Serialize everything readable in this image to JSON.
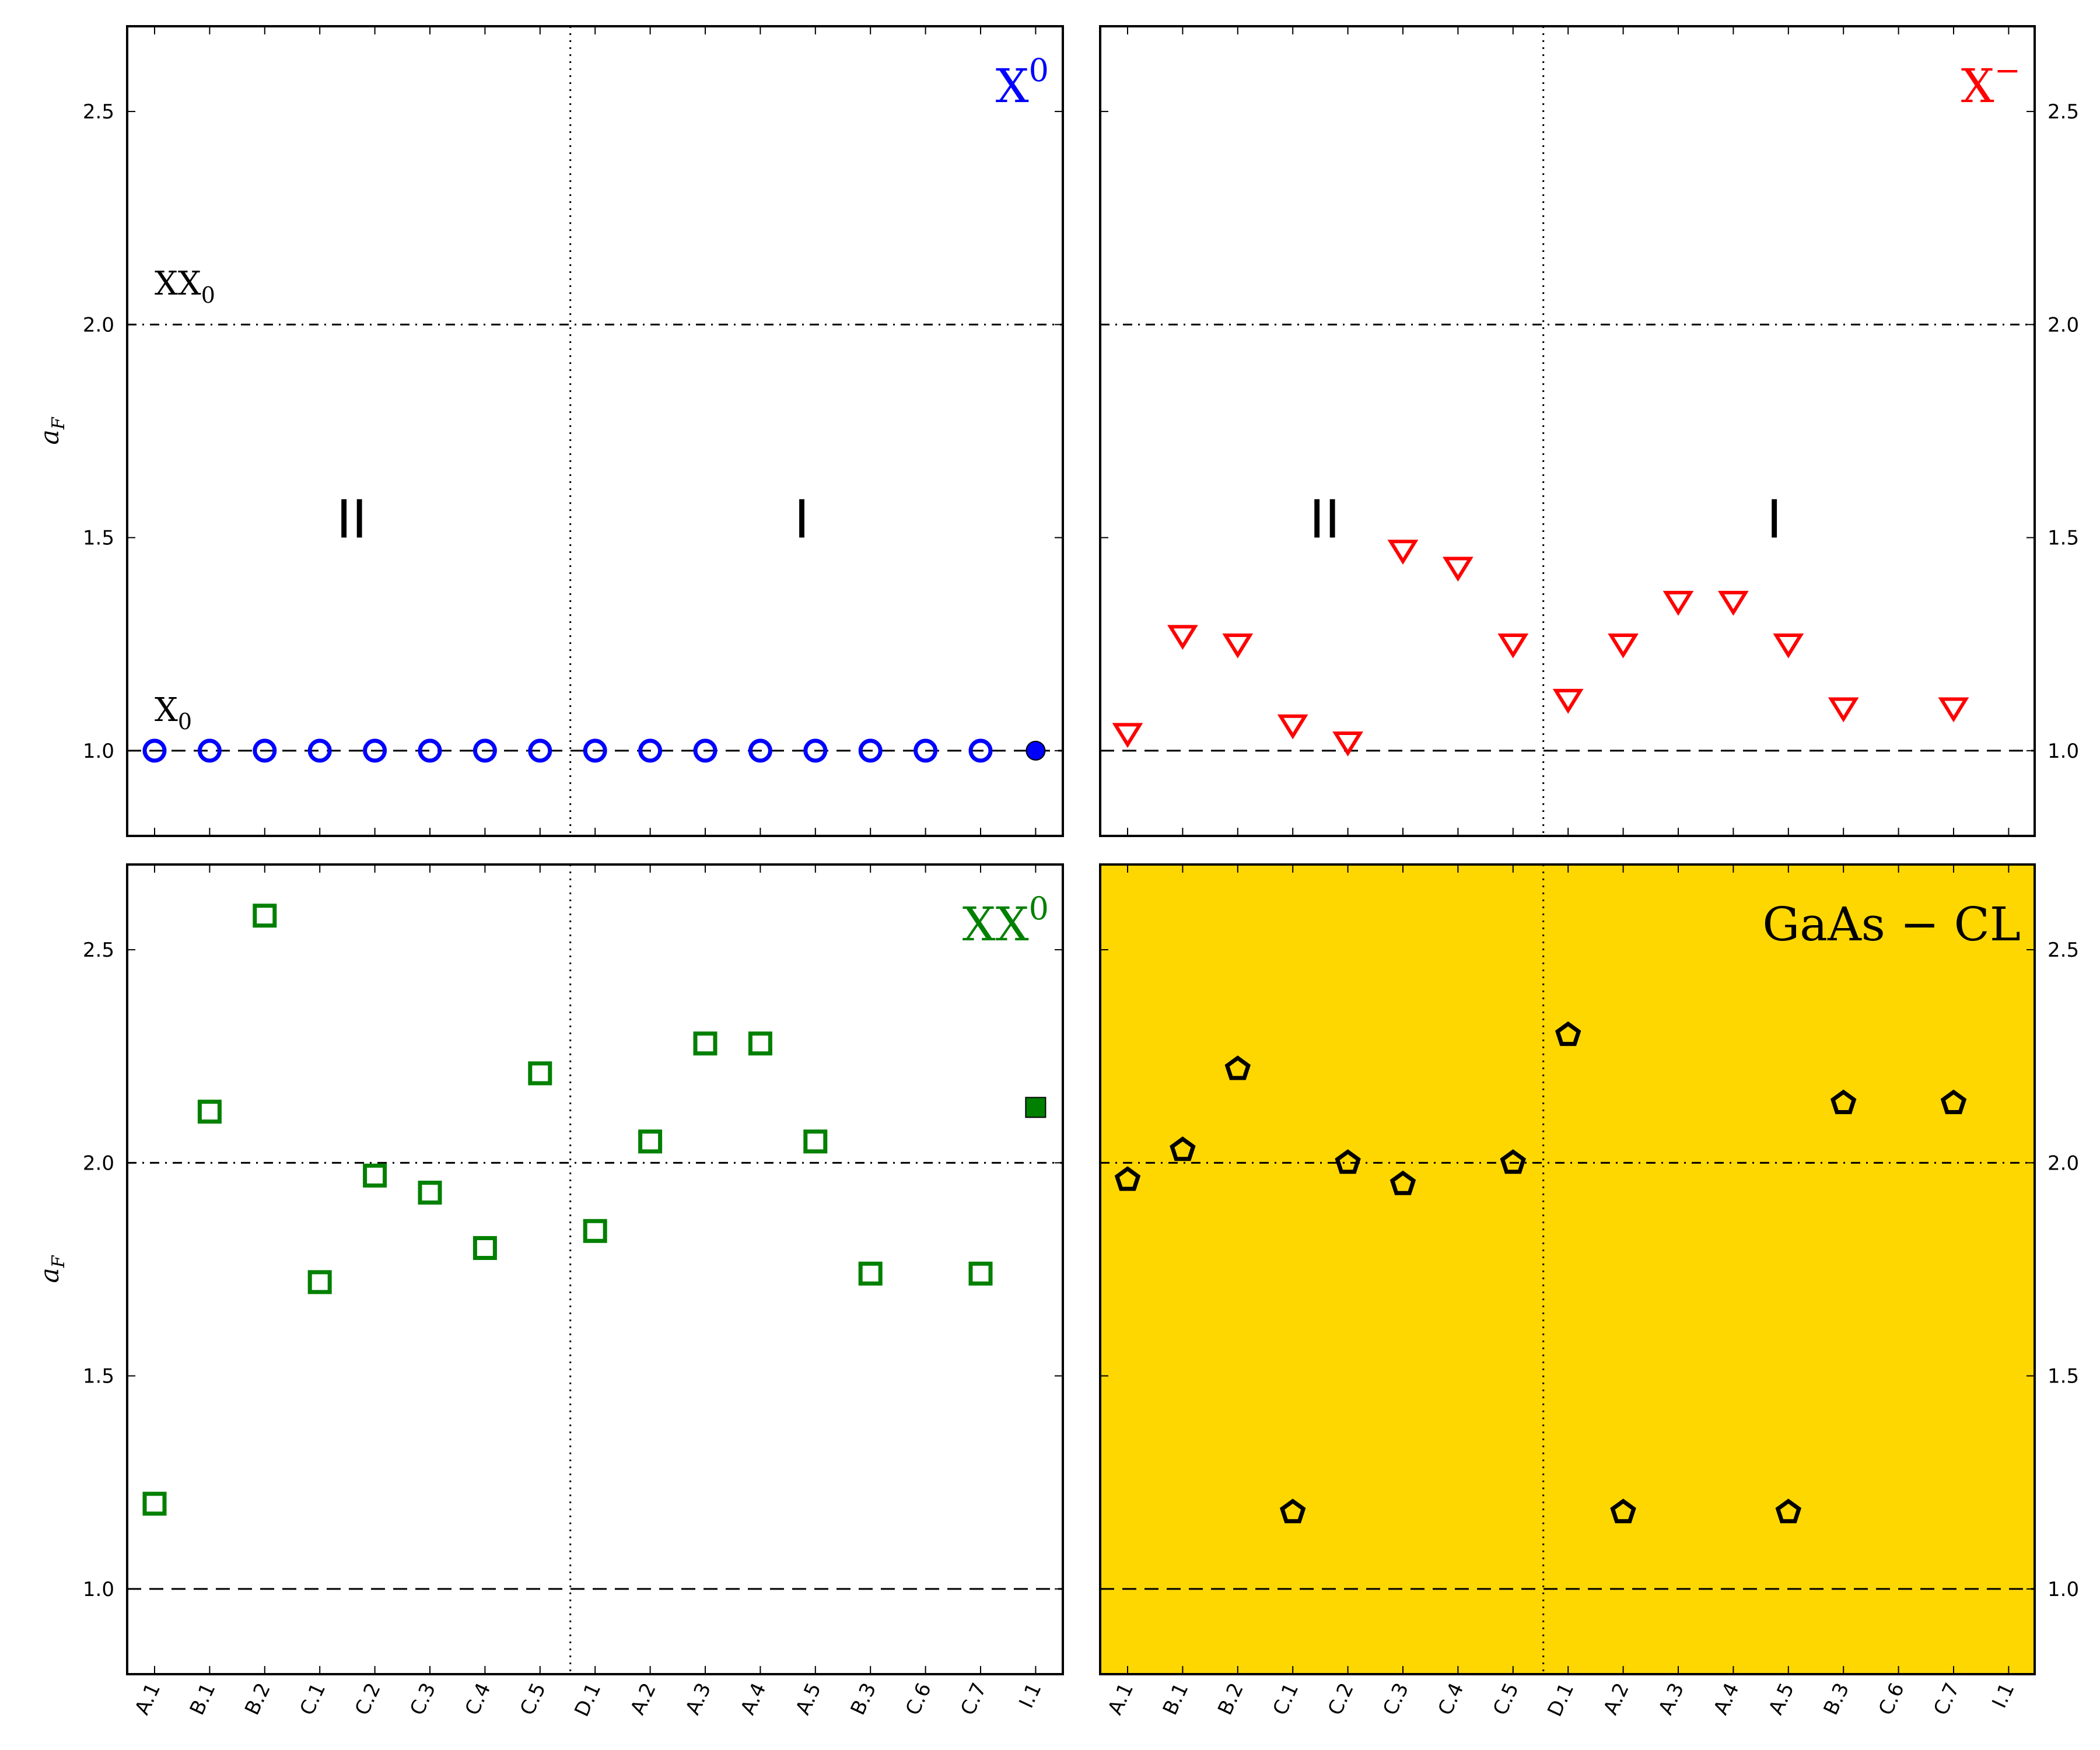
{
  "chart_data": [
    {
      "type": "scatter",
      "panel_label": "X",
      "panel_label_sup": "0",
      "panel_label_color": "#0000ff",
      "ylabel_main": "a",
      "ylabel_sub": "F",
      "categories": [
        "A.1",
        "B.1",
        "B.2",
        "C.1",
        "C.2",
        "C.3",
        "C.4",
        "C.5",
        "D.1",
        "A.2",
        "A.3",
        "A.4",
        "A.5",
        "B.3",
        "C.6",
        "C.7",
        "I.1"
      ],
      "ylim": [
        0.8,
        2.7
      ],
      "yticks": [
        "1.0",
        "1.5",
        "2.0",
        "2.5"
      ],
      "series": [
        {
          "marker": "circle",
          "color": "#0000ff",
          "values": [
            1.0,
            1.0,
            1.0,
            1.0,
            1.0,
            1.0,
            1.0,
            1.0,
            1.0,
            1.0,
            1.0,
            1.0,
            1.0,
            1.0,
            1.0,
            1.0,
            1.0
          ],
          "filled_last": true
        }
      ],
      "hlines": [
        {
          "y": 1.0,
          "style": "dashed"
        },
        {
          "y": 2.0,
          "style": "dashdot"
        }
      ],
      "annotations": [
        {
          "main": "XX",
          "sub": "0",
          "x": "A.1",
          "y": 2.07
        },
        {
          "main": "X",
          "sub": "0",
          "x": "A.1",
          "y": 1.07
        }
      ],
      "regions": [
        "II",
        "I"
      ],
      "divider_after": "C.5"
    },
    {
      "type": "scatter",
      "panel_label": "X",
      "panel_label_sup": "−",
      "panel_label_color": "#ff0000",
      "categories": [
        "A.1",
        "B.1",
        "B.2",
        "C.1",
        "C.2",
        "C.3",
        "C.4",
        "C.5",
        "D.1",
        "A.2",
        "A.3",
        "A.4",
        "A.5",
        "B.3",
        "C.6",
        "C.7",
        "I.1"
      ],
      "ylim": [
        0.8,
        2.7
      ],
      "yticks": [
        "1.0",
        "1.5",
        "2.0",
        "2.5"
      ],
      "series": [
        {
          "marker": "triangle-down",
          "color": "#ff0000",
          "x": [
            "A.1",
            "B.1",
            "B.2",
            "C.1",
            "C.2",
            "C.3",
            "C.4",
            "C.5",
            "D.1",
            "A.2",
            "A.3",
            "A.4",
            "A.5",
            "B.3",
            "C.7"
          ],
          "values": [
            1.04,
            1.27,
            1.25,
            1.06,
            1.02,
            1.47,
            1.43,
            1.25,
            1.12,
            1.25,
            1.35,
            1.35,
            1.25,
            1.1,
            1.1
          ]
        }
      ],
      "hlines": [
        {
          "y": 1.0,
          "style": "dashed"
        },
        {
          "y": 2.0,
          "style": "dashdot"
        }
      ],
      "regions": [
        "II",
        "I"
      ],
      "divider_after": "C.5"
    },
    {
      "type": "scatter",
      "panel_label": "XX",
      "panel_label_sup": "0",
      "panel_label_color": "#008000",
      "ylabel_main": "a",
      "ylabel_sub": "F",
      "categories": [
        "A.1",
        "B.1",
        "B.2",
        "C.1",
        "C.2",
        "C.3",
        "C.4",
        "C.5",
        "D.1",
        "A.2",
        "A.3",
        "A.4",
        "A.5",
        "B.3",
        "C.6",
        "C.7",
        "I.1"
      ],
      "ylim": [
        0.8,
        2.7
      ],
      "yticks": [
        "1.0",
        "1.5",
        "2.0",
        "2.5"
      ],
      "series": [
        {
          "marker": "square",
          "color": "#008000",
          "x": [
            "A.1",
            "B.1",
            "B.2",
            "C.1",
            "C.2",
            "C.3",
            "C.4",
            "C.5",
            "D.1",
            "A.2",
            "A.3",
            "A.4",
            "A.5",
            "B.3",
            "C.7",
            "I.1"
          ],
          "values": [
            1.2,
            2.12,
            2.58,
            1.72,
            1.97,
            1.93,
            1.8,
            2.21,
            1.84,
            2.05,
            2.28,
            2.28,
            2.05,
            1.74,
            1.74,
            2.13
          ],
          "filled_last": true
        }
      ],
      "hlines": [
        {
          "y": 1.0,
          "style": "dashed"
        },
        {
          "y": 2.0,
          "style": "dashdot"
        }
      ],
      "divider_after": "C.5"
    },
    {
      "type": "scatter",
      "panel_label": "GaAs − CL",
      "panel_label_color": "#000000",
      "background": "#ffd700",
      "categories": [
        "A.1",
        "B.1",
        "B.2",
        "C.1",
        "C.2",
        "C.3",
        "C.4",
        "C.5",
        "D.1",
        "A.2",
        "A.3",
        "A.4",
        "A.5",
        "B.3",
        "C.6",
        "C.7",
        "I.1"
      ],
      "ylim": [
        0.8,
        2.7
      ],
      "yticks": [
        "1.0",
        "1.5",
        "2.0",
        "2.5"
      ],
      "series": [
        {
          "marker": "pentagon",
          "color": "#000000",
          "x": [
            "A.1",
            "B.1",
            "B.2",
            "C.1",
            "C.2",
            "C.3",
            "C.5",
            "D.1",
            "A.2",
            "A.5",
            "B.3",
            "C.7"
          ],
          "values": [
            1.96,
            2.03,
            2.22,
            1.18,
            2.0,
            1.95,
            2.0,
            2.3,
            1.18,
            1.18,
            2.14,
            2.14
          ]
        }
      ],
      "hlines": [
        {
          "y": 1.0,
          "style": "dashed"
        },
        {
          "y": 2.0,
          "style": "dashdot"
        }
      ],
      "divider_after": "C.5"
    }
  ]
}
